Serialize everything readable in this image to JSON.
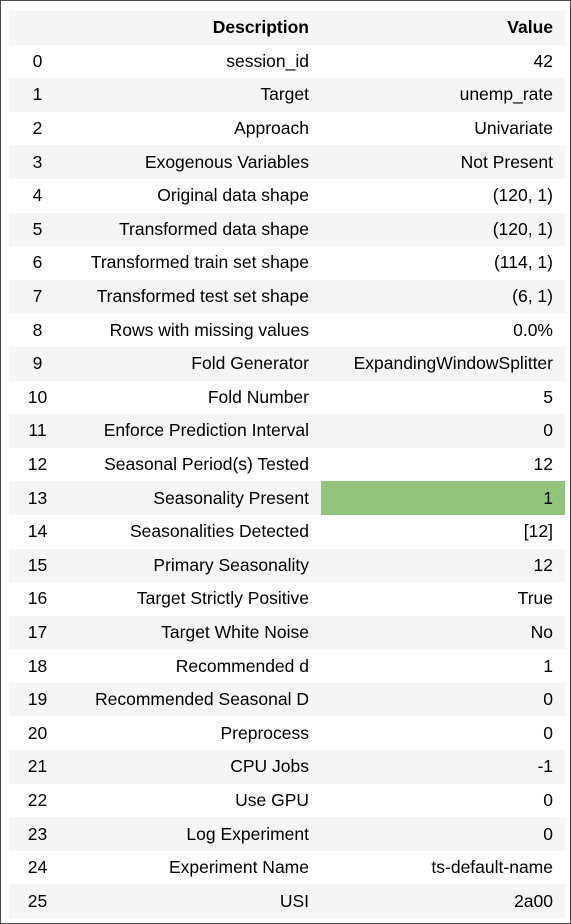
{
  "table": {
    "columns": [
      "",
      "Description",
      "Value"
    ],
    "highlight_color": "#93c47d",
    "rows": [
      {
        "index": "0",
        "description": "session_id",
        "value": "42",
        "highlight": false
      },
      {
        "index": "1",
        "description": "Target",
        "value": "unemp_rate",
        "highlight": false
      },
      {
        "index": "2",
        "description": "Approach",
        "value": "Univariate",
        "highlight": false
      },
      {
        "index": "3",
        "description": "Exogenous Variables",
        "value": "Not Present",
        "highlight": false
      },
      {
        "index": "4",
        "description": "Original data shape",
        "value": "(120, 1)",
        "highlight": false
      },
      {
        "index": "5",
        "description": "Transformed data shape",
        "value": "(120, 1)",
        "highlight": false
      },
      {
        "index": "6",
        "description": "Transformed train set shape",
        "value": "(114, 1)",
        "highlight": false
      },
      {
        "index": "7",
        "description": "Transformed test set shape",
        "value": "(6, 1)",
        "highlight": false
      },
      {
        "index": "8",
        "description": "Rows with missing values",
        "value": "0.0%",
        "highlight": false
      },
      {
        "index": "9",
        "description": "Fold Generator",
        "value": "ExpandingWindowSplitter",
        "highlight": false
      },
      {
        "index": "10",
        "description": "Fold Number",
        "value": "5",
        "highlight": false
      },
      {
        "index": "11",
        "description": "Enforce Prediction Interval",
        "value": "0",
        "highlight": false
      },
      {
        "index": "12",
        "description": "Seasonal Period(s) Tested",
        "value": "12",
        "highlight": false
      },
      {
        "index": "13",
        "description": "Seasonality Present",
        "value": "1",
        "highlight": true
      },
      {
        "index": "14",
        "description": "Seasonalities Detected",
        "value": "[12]",
        "highlight": false
      },
      {
        "index": "15",
        "description": "Primary Seasonality",
        "value": "12",
        "highlight": false
      },
      {
        "index": "16",
        "description": "Target Strictly Positive",
        "value": "True",
        "highlight": false
      },
      {
        "index": "17",
        "description": "Target White Noise",
        "value": "No",
        "highlight": false
      },
      {
        "index": "18",
        "description": "Recommended d",
        "value": "1",
        "highlight": false
      },
      {
        "index": "19",
        "description": "Recommended Seasonal D",
        "value": "0",
        "highlight": false
      },
      {
        "index": "20",
        "description": "Preprocess",
        "value": "0",
        "highlight": false
      },
      {
        "index": "21",
        "description": "CPU Jobs",
        "value": "-1",
        "highlight": false
      },
      {
        "index": "22",
        "description": "Use GPU",
        "value": "0",
        "highlight": false
      },
      {
        "index": "23",
        "description": "Log Experiment",
        "value": "0",
        "highlight": false
      },
      {
        "index": "24",
        "description": "Experiment Name",
        "value": "ts-default-name",
        "highlight": false
      },
      {
        "index": "25",
        "description": "USI",
        "value": "2a00",
        "highlight": false
      }
    ]
  }
}
